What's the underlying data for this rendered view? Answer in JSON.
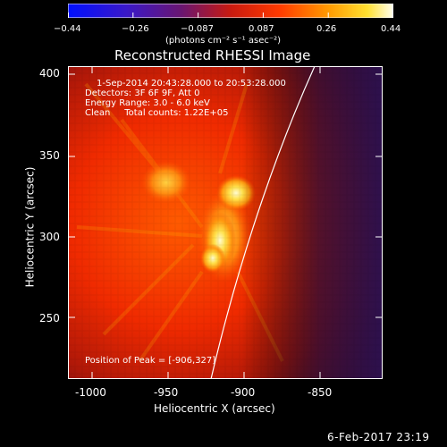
{
  "colorbar": {
    "ticks": [
      "−0.44",
      "−0.26",
      "−0.087",
      "0.087",
      "0.26",
      "0.44"
    ],
    "units": "(photons cm⁻² s⁻¹ asec⁻²)"
  },
  "plot": {
    "title": "Reconstructed RHESSI Image",
    "info_lines": [
      "1-Sep-2014 20:43:28.000 to 20:53:28.000",
      "Detectors: 3F 6F 9F, Att 0",
      "Energy Range: 3.0 - 6.0 keV",
      "Clean     Total counts: 1.22E+05"
    ],
    "peak_label": "Position of Peak = [-906,327]",
    "xlabel": "Heliocentric X (arcsec)",
    "ylabel": "Heliocentric Y (arcsec)",
    "xticks": [
      "-1000",
      "-950",
      "-900",
      "-850"
    ],
    "yticks": [
      "250",
      "300",
      "350",
      "400"
    ]
  },
  "footer": {
    "timestamp": "6-Feb-2017 23:19"
  }
}
